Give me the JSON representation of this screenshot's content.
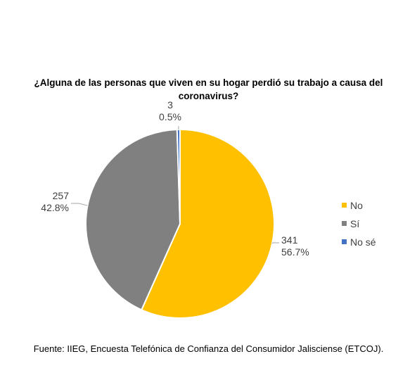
{
  "chart_data": {
    "type": "pie",
    "title": "¿Alguna de las personas que viven en su hogar perdió su trabajo a causa del coronavirus?",
    "slices": [
      {
        "label": "No",
        "count": "341",
        "percent": "56.7%",
        "value": 56.7,
        "color": "#FFC000"
      },
      {
        "label": "Sí",
        "count": "257",
        "percent": "42.8%",
        "value": 42.8,
        "color": "#808080"
      },
      {
        "label": "No sé",
        "count": "3",
        "percent": "0.5%",
        "value": 0.5,
        "color": "#4472C4"
      }
    ],
    "legend_position": "right",
    "start_angle_deg": 0,
    "direction": "clockwise"
  },
  "source": "Fuente: IIEG, Encuesta Telefónica de Confianza del Consumidor Jalisciense (ETCOJ)."
}
